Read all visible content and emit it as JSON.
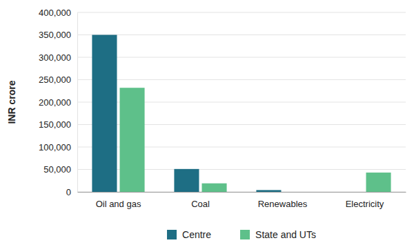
{
  "chart_data": {
    "type": "bar",
    "y_label": "INR crore",
    "categories": [
      "Oil and gas",
      "Coal",
      "Renewables",
      "Electricity"
    ],
    "series": [
      {
        "name": "Centre",
        "color": "#1e6e84",
        "values": [
          350000,
          51000,
          4000,
          0
        ]
      },
      {
        "name": "State and UTs",
        "color": "#5ec08a",
        "values": [
          232000,
          19000,
          0,
          43000
        ]
      }
    ],
    "ylim": [
      0,
      400000
    ],
    "yticks": [
      {
        "value": 0,
        "label": "0"
      },
      {
        "value": 50000,
        "label": "50,000"
      },
      {
        "value": 100000,
        "label": "100,000"
      },
      {
        "value": 150000,
        "label": "150,000"
      },
      {
        "value": 200000,
        "label": "200,000"
      },
      {
        "value": 250000,
        "label": "250,000"
      },
      {
        "value": 300000,
        "label": "300,000"
      },
      {
        "value": 350000,
        "label": "350,000"
      },
      {
        "value": 400000,
        "label": "400,000"
      }
    ],
    "grid": true,
    "legend": "bottom"
  }
}
